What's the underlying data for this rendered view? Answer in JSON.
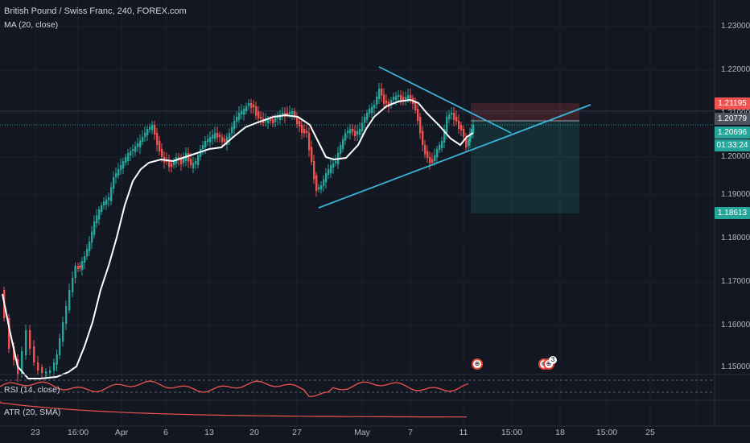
{
  "header": {
    "symbol_title": "British Pound / Swiss Franc, 240, FOREX.com",
    "indicator_ma": "MA (20, close)"
  },
  "panes": {
    "rsi_label": "RSI (14, close)",
    "atr_label": "ATR (20, SMA)"
  },
  "price_axis": {
    "labels": [
      "1.23000",
      "1.22000",
      "1.21000",
      "1.20000",
      "1.19000",
      "1.18000",
      "1.17000",
      "1.16000",
      "1.15000"
    ]
  },
  "price_tags": [
    {
      "text": "1.21195",
      "color": "#ef5350"
    },
    {
      "text": "1.20779",
      "color": "#4c525e"
    },
    {
      "text": "1.20696",
      "color": "#26a69a"
    },
    {
      "text": "01:33:24",
      "color": "#26a69a"
    },
    {
      "text": "1.18613",
      "color": "#26a69a"
    }
  ],
  "time_axis": {
    "labels": [
      "23",
      "16:00",
      "Apr",
      "6",
      "13",
      "20",
      "27",
      "May",
      "7",
      "11",
      "15:00",
      "18",
      "15:00",
      "25"
    ]
  },
  "events": {
    "badge_count": "3"
  },
  "colors": {
    "background": "#131722",
    "bull": "#26a69a",
    "bear": "#ef5350",
    "ma": "#ffffff",
    "trendline": "#3bb3d8",
    "rsi": "#ef5350",
    "atr": "#ef5350"
  }
}
